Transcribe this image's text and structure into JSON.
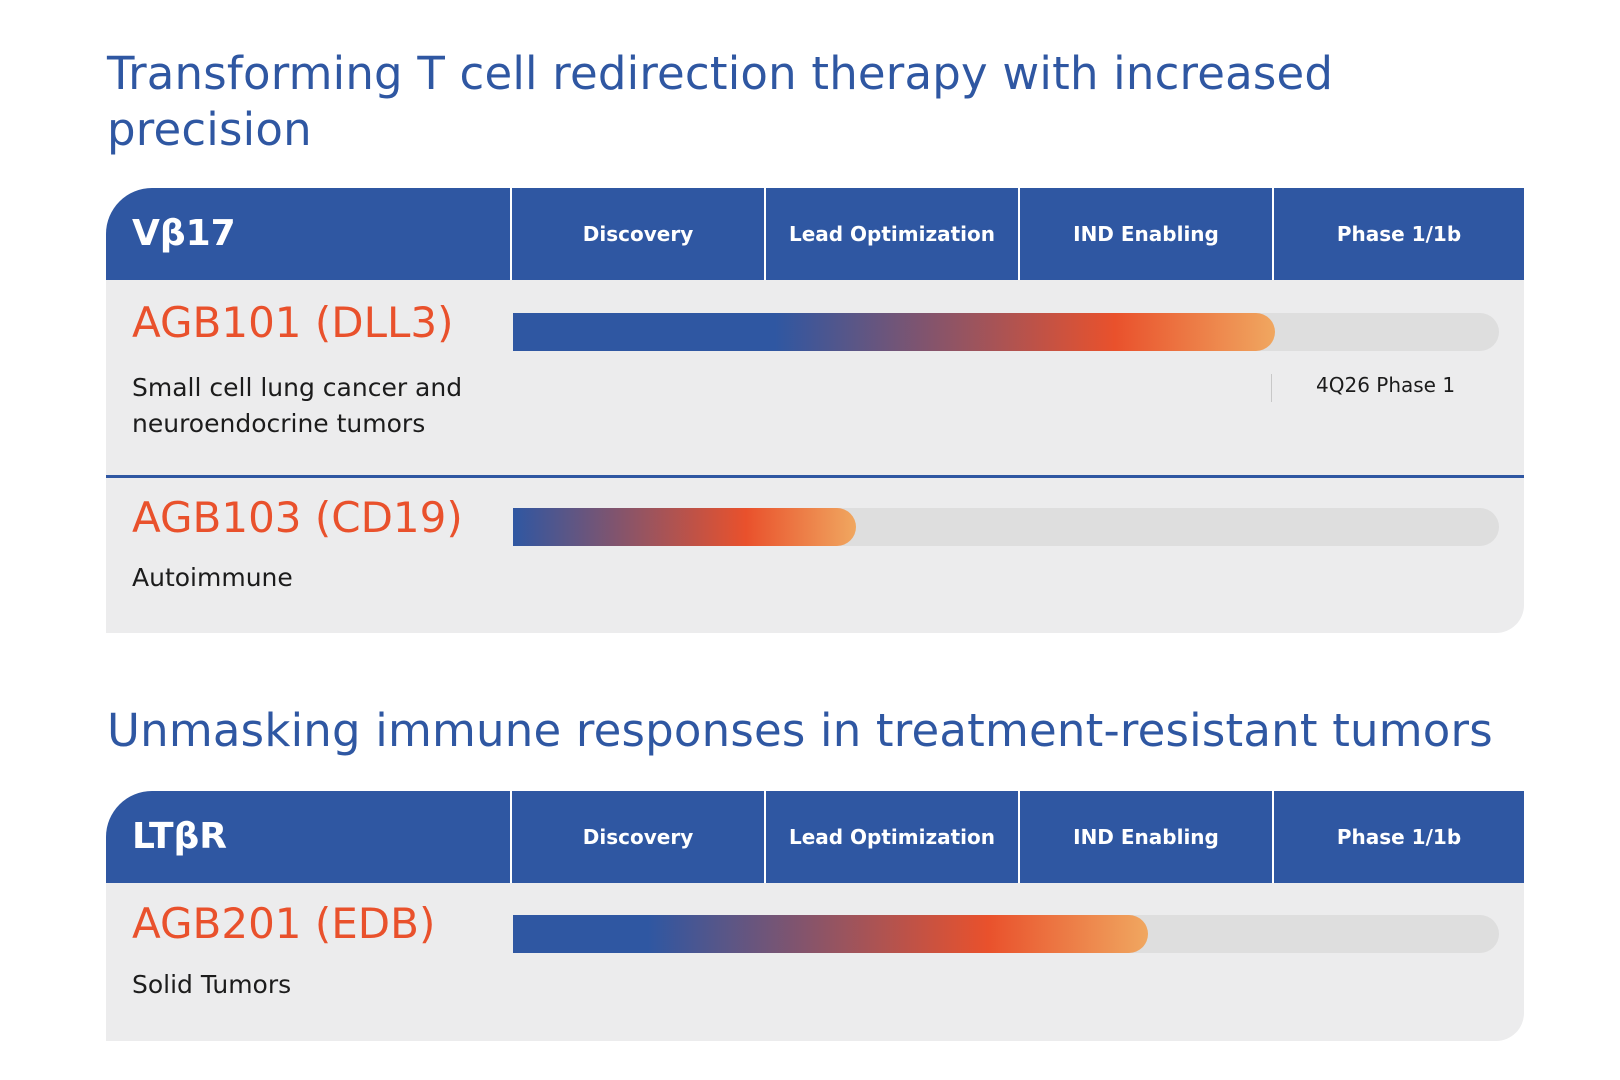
{
  "sections": [
    {
      "heading": "Transforming T cell redirection therapy with increased precision",
      "platform": "Vβ17",
      "stages": [
        "Discovery",
        "Lead  Optimization",
        "IND Enabling",
        "Phase 1/1b"
      ],
      "programs": [
        {
          "name": "AGB101 (DLL3)",
          "indication": "Small cell lung cancer and neuroendocrine tumors",
          "progress_stages": 3.0,
          "milestone": "4Q26 Phase 1"
        },
        {
          "name": "AGB103 (CD19)",
          "indication": "Autoimmune",
          "progress_stages": 1.35
        }
      ]
    },
    {
      "heading": "Unmasking immune responses in treatment-resistant tumors",
      "platform": "LTβR",
      "stages": [
        "Discovery",
        "Lead  Optimization",
        "IND Enabling",
        "Phase 1/1b"
      ],
      "programs": [
        {
          "name": "AGB201 (EDB)",
          "indication": "Solid Tumors",
          "progress_stages": 2.5
        }
      ]
    }
  ],
  "chart_data": [
    {
      "type": "bar",
      "orientation": "horizontal",
      "title": "Transforming T cell redirection therapy with increased precision",
      "group": "Vβ17",
      "categories": [
        "AGB101 (DLL3)",
        "AGB103 (CD19)"
      ],
      "values": [
        3.0,
        1.35
      ],
      "x_axis_stages": [
        "Discovery",
        "Lead  Optimization",
        "IND Enabling",
        "Phase 1/1b"
      ],
      "xlim": [
        0,
        4
      ],
      "annotations": [
        {
          "program": "AGB101 (DLL3)",
          "text": "4Q26 Phase 1"
        }
      ]
    },
    {
      "type": "bar",
      "orientation": "horizontal",
      "title": "Unmasking immune responses in treatment-resistant tumors",
      "group": "LTβR",
      "categories": [
        "AGB201 (EDB)"
      ],
      "values": [
        2.5
      ],
      "x_axis_stages": [
        "Discovery",
        "Lead  Optimization",
        "IND Enabling",
        "Phase 1/1b"
      ],
      "xlim": [
        0,
        4
      ]
    }
  ],
  "colors": {
    "brand_blue": "#2f57a2",
    "accent_red": "#e9512c",
    "accent_orange": "#f0a760",
    "panel_bg": "#ececed",
    "track_bg": "#dedede"
  }
}
